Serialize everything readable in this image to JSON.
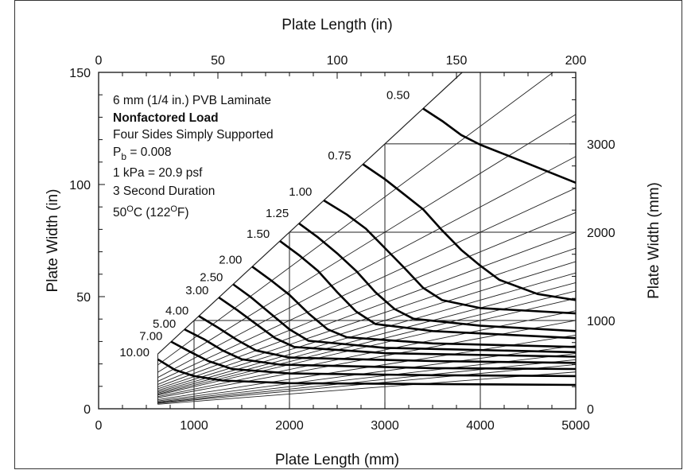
{
  "chart_data": {
    "type": "line",
    "axes": {
      "bottom": {
        "label": "Plate Length (mm)",
        "range": [
          0,
          5000
        ],
        "ticks": [
          "0",
          "1000",
          "2000",
          "3000",
          "4000",
          "5000"
        ]
      },
      "top": {
        "label": "Plate Length (in)",
        "range": [
          0,
          200
        ],
        "ticks": [
          "0",
          "50",
          "100",
          "150",
          "200"
        ]
      },
      "left": {
        "label": "Plate Width (in)",
        "range": [
          0,
          150
        ],
        "ticks": [
          "0",
          "50",
          "100",
          "150"
        ]
      },
      "right": {
        "label": "Plate Width (mm)",
        "range": [
          0,
          3800
        ],
        "ticks": [
          "0",
          "1000",
          "2000",
          "3000"
        ]
      }
    },
    "annotations": {
      "line1": "6 mm (1/4 in.) PVB Laminate",
      "line2": "Nonfactored Load",
      "line3": "Four Sides Simply Supported",
      "line4_base": "P",
      "line4_sub": "b",
      "line4_rest": " = 0.008",
      "line5": "1 kPa = 20.9 psf",
      "line6": "3 Second Duration",
      "line7_a": "50",
      "line7_sup1": "O",
      "line7_b": "C (122",
      "line7_sup2": "O",
      "line7_c": "F)"
    },
    "grid": {
      "vertical_mm": [
        1000,
        2000,
        3000,
        4000
      ],
      "horizontal_mm": [
        1000,
        2000,
        3000
      ]
    },
    "aspect_ratio_lines": [
      1,
      1.25,
      1.5,
      1.75,
      2,
      2.25,
      2.5,
      2.75,
      3,
      3.25,
      3.5,
      3.75,
      4,
      4.5,
      5,
      6,
      7,
      8,
      9,
      10,
      12
    ],
    "min_length_mm": 620,
    "series": [
      {
        "name": "0.50",
        "points": [
          [
            3400,
            3400
          ],
          [
            3600,
            3260
          ],
          [
            3800,
            3100
          ],
          [
            4000,
            2990
          ],
          [
            4400,
            2820
          ],
          [
            5000,
            2560
          ]
        ]
      },
      {
        "name": "0.75",
        "points": [
          [
            2770,
            2770
          ],
          [
            3000,
            2600
          ],
          [
            3200,
            2430
          ],
          [
            3400,
            2260
          ],
          [
            3600,
            2020
          ],
          [
            3800,
            1800
          ],
          [
            4000,
            1620
          ],
          [
            4200,
            1460
          ],
          [
            4600,
            1300
          ],
          [
            5000,
            1230
          ]
        ]
      },
      {
        "name": "1.00",
        "points": [
          [
            2360,
            2360
          ],
          [
            2600,
            2200
          ],
          [
            2800,
            2040
          ],
          [
            3000,
            1820
          ],
          [
            3200,
            1600
          ],
          [
            3400,
            1370
          ],
          [
            3600,
            1230
          ],
          [
            4000,
            1140
          ],
          [
            5000,
            1080
          ]
        ]
      },
      {
        "name": "1.25",
        "points": [
          [
            2100,
            2100
          ],
          [
            2300,
            1940
          ],
          [
            2500,
            1760
          ],
          [
            2700,
            1560
          ],
          [
            2900,
            1320
          ],
          [
            3100,
            1130
          ],
          [
            3300,
            1020
          ],
          [
            4000,
            940
          ],
          [
            5000,
            880
          ]
        ]
      },
      {
        "name": "1.50",
        "points": [
          [
            1900,
            1900
          ],
          [
            2100,
            1740
          ],
          [
            2300,
            1560
          ],
          [
            2500,
            1320
          ],
          [
            2700,
            1100
          ],
          [
            2900,
            960
          ],
          [
            3500,
            880
          ],
          [
            5000,
            800
          ]
        ]
      },
      {
        "name": "2.00",
        "points": [
          [
            1610,
            1610
          ],
          [
            1800,
            1460
          ],
          [
            2000,
            1290
          ],
          [
            2200,
            1080
          ],
          [
            2400,
            900
          ],
          [
            2600,
            810
          ],
          [
            3500,
            740
          ],
          [
            5000,
            700
          ]
        ]
      },
      {
        "name": "2.50",
        "points": [
          [
            1410,
            1410
          ],
          [
            1600,
            1260
          ],
          [
            1800,
            1080
          ],
          [
            2000,
            900
          ],
          [
            2200,
            770
          ],
          [
            3000,
            690
          ],
          [
            5000,
            640
          ]
        ]
      },
      {
        "name": "3.00",
        "points": [
          [
            1260,
            1260
          ],
          [
            1450,
            1120
          ],
          [
            1650,
            960
          ],
          [
            1850,
            800
          ],
          [
            2050,
            700
          ],
          [
            3000,
            630
          ],
          [
            5000,
            590
          ]
        ]
      },
      {
        "name": "4.00",
        "points": [
          [
            1050,
            1050
          ],
          [
            1250,
            920
          ],
          [
            1450,
            780
          ],
          [
            1650,
            660
          ],
          [
            2000,
            580
          ],
          [
            3500,
            540
          ],
          [
            5000,
            520
          ]
        ]
      },
      {
        "name": "5.00",
        "points": [
          [
            900,
            900
          ],
          [
            1100,
            790
          ],
          [
            1300,
            660
          ],
          [
            1500,
            560
          ],
          [
            1900,
            500
          ],
          [
            3500,
            460
          ],
          [
            5000,
            450
          ]
        ]
      },
      {
        "name": "7.00",
        "points": [
          [
            760,
            760
          ],
          [
            950,
            650
          ],
          [
            1150,
            540
          ],
          [
            1400,
            450
          ],
          [
            2000,
            400
          ],
          [
            3500,
            380
          ],
          [
            5000,
            370
          ]
        ]
      },
      {
        "name": "10.00",
        "points": [
          [
            620,
            560
          ],
          [
            800,
            440
          ],
          [
            1000,
            370
          ],
          [
            1300,
            320
          ],
          [
            2000,
            290
          ],
          [
            3500,
            280
          ],
          [
            5000,
            270
          ]
        ]
      }
    ]
  }
}
